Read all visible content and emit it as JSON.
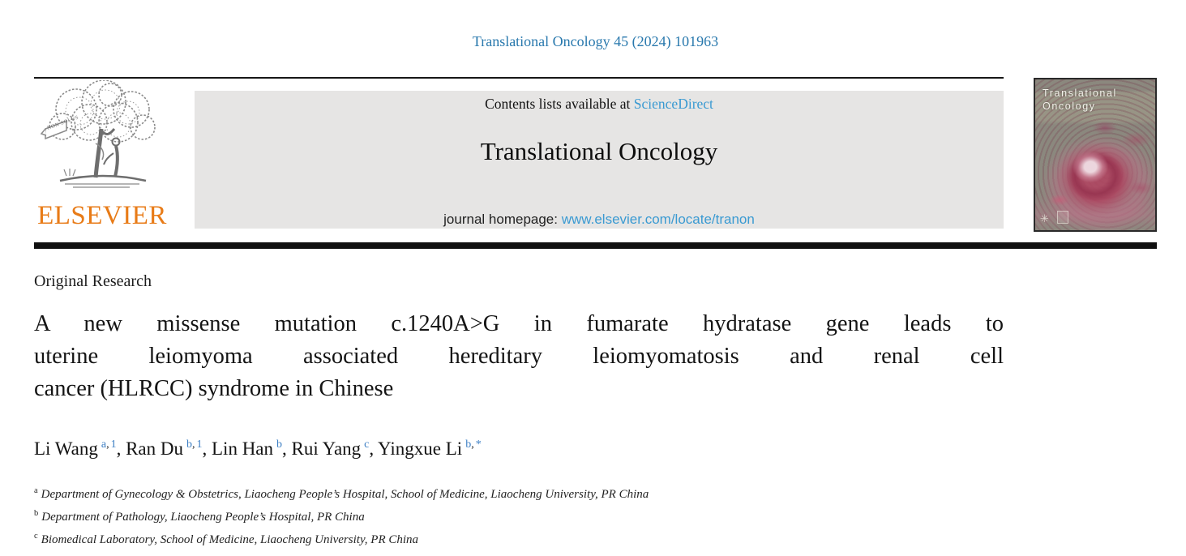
{
  "page": {
    "citation": "Translational Oncology 45 (2024) 101963"
  },
  "masthead": {
    "elsevier_wordmark": "ELSEVIER",
    "elsevier_banner_text": "NON SOLUS",
    "contents_prefix": "Contents lists available at",
    "sciencedirect_label": "ScienceDirect",
    "journal_title": "Translational Oncology",
    "homepage_prefix": "journal homepage:",
    "homepage_url": "www.elsevier.com/locate/tranon",
    "cover": {
      "line1": "Translational",
      "line2": "Oncology",
      "sun_glyph": "✳"
    }
  },
  "article": {
    "category": "Original Research",
    "title_full": "A new missense mutation c.1240A>G in fumarate hydratase gene leads to uterine leiomyoma associated hereditary leiomyomatosis and renal cell cancer (HLRCC) syndrome in Chinese",
    "title_lines": [
      "A new missense mutation c.1240A>G in fumarate hydratase gene leads to",
      "uterine leiomyoma associated hereditary leiomyomatosis and renal cell",
      "cancer (HLRCC) syndrome in Chinese"
    ],
    "authors": [
      {
        "name": "Li Wang",
        "sup": [
          "a",
          "1"
        ]
      },
      {
        "name": "Ran Du",
        "sup": [
          "b",
          "1"
        ]
      },
      {
        "name": "Lin Han",
        "sup": [
          "b"
        ]
      },
      {
        "name": "Rui Yang",
        "sup": [
          "c"
        ]
      },
      {
        "name": "Yingxue Li",
        "sup": [
          "b",
          "*"
        ]
      }
    ],
    "affiliations": [
      {
        "sup": "a",
        "text": "Department of Gynecology & Obstetrics, Liaocheng People’s Hospital, School of Medicine, Liaocheng University, PR China"
      },
      {
        "sup": "b",
        "text": "Department of Pathology, Liaocheng People’s Hospital, PR China"
      },
      {
        "sup": "c",
        "text": "Biomedical Laboratory, School of Medicine, Liaocheng University, PR China"
      }
    ]
  },
  "colors": {
    "citation_link_blue": "#2878ad",
    "sciencedirect_blue": "#3a9ad2",
    "homepage_url_blue": "#3a9ad2",
    "author_superscript_blue": "#3d7fc4",
    "elsevier_orange": "#e87b17",
    "banner_gray": "#e6e5e4",
    "cover_taupe": "#8b887e",
    "rule_black": "#101010"
  }
}
